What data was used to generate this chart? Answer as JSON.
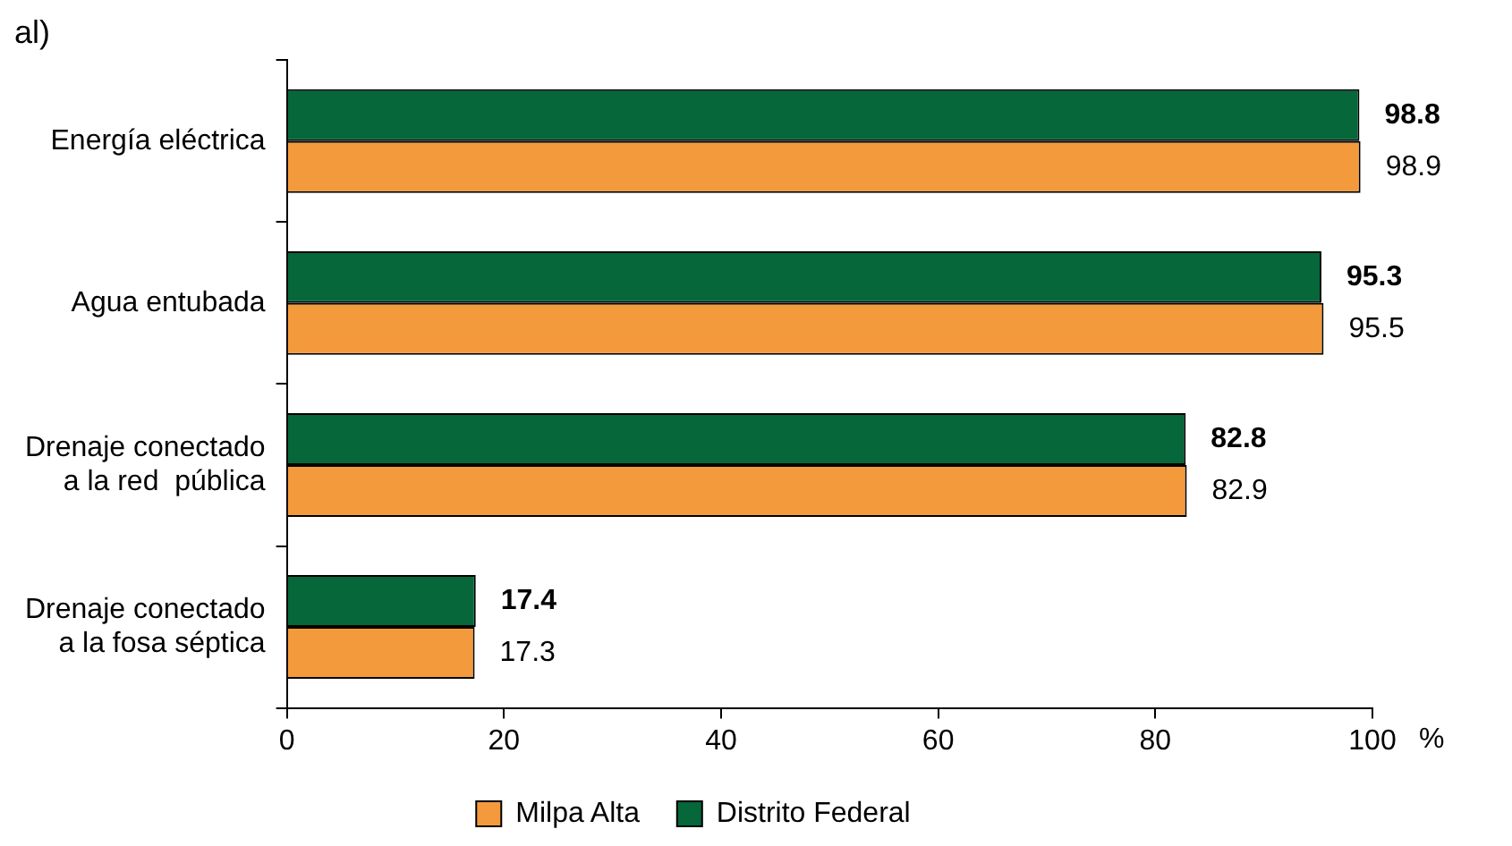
{
  "chart_data": {
    "type": "bar",
    "orientation": "horizontal",
    "title": "al)",
    "xlabel": "%",
    "categories": [
      "Energía eléctrica",
      "Agua entubada",
      "Drenaje conectado\na la red  pública",
      "Drenaje conectado\na la fosa séptica"
    ],
    "series": [
      {
        "name": "Distrito Federal",
        "color": "#05673a",
        "values": [
          98.8,
          95.3,
          82.8,
          17.4
        ]
      },
      {
        "name": "Milpa Alta",
        "color": "#f39a3c",
        "values": [
          98.9,
          95.5,
          82.9,
          17.3
        ]
      }
    ],
    "xlim": [
      0,
      100
    ],
    "xticks": [
      0,
      20,
      40,
      60,
      80,
      100
    ],
    "data_labels": true,
    "grid": false,
    "legend": "bottom"
  }
}
